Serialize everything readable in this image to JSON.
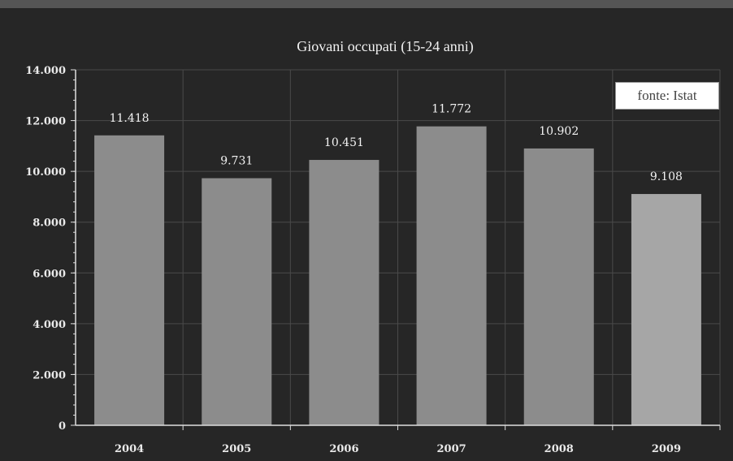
{
  "chart_data": {
    "type": "bar",
    "title": "Giovani occupati (15-24 anni)",
    "xlabel": "",
    "ylabel": "",
    "categories": [
      "2004",
      "2005",
      "2006",
      "2007",
      "2008",
      "2009"
    ],
    "values": [
      11418,
      9731,
      10451,
      11772,
      10902,
      9108
    ],
    "value_labels": [
      "11.418",
      "9.731",
      "10.451",
      "11.772",
      "10.902",
      "9.108"
    ],
    "ylim": [
      0,
      14000
    ],
    "yticks": [
      0,
      2000,
      4000,
      6000,
      8000,
      10000,
      12000,
      14000
    ],
    "ytick_labels": [
      "0",
      "2.000",
      "4.000",
      "6.000",
      "8.000",
      "10.000",
      "12.000",
      "14.000"
    ],
    "grid": true,
    "source_label": "fonte: Istat",
    "colors": {
      "background": "#262626",
      "bar": "#8c8c8c",
      "bar_last": "#a6a6a6",
      "grid": "#4a4a4a",
      "axis": "#dddddd",
      "text": "#f2f2f2"
    }
  }
}
